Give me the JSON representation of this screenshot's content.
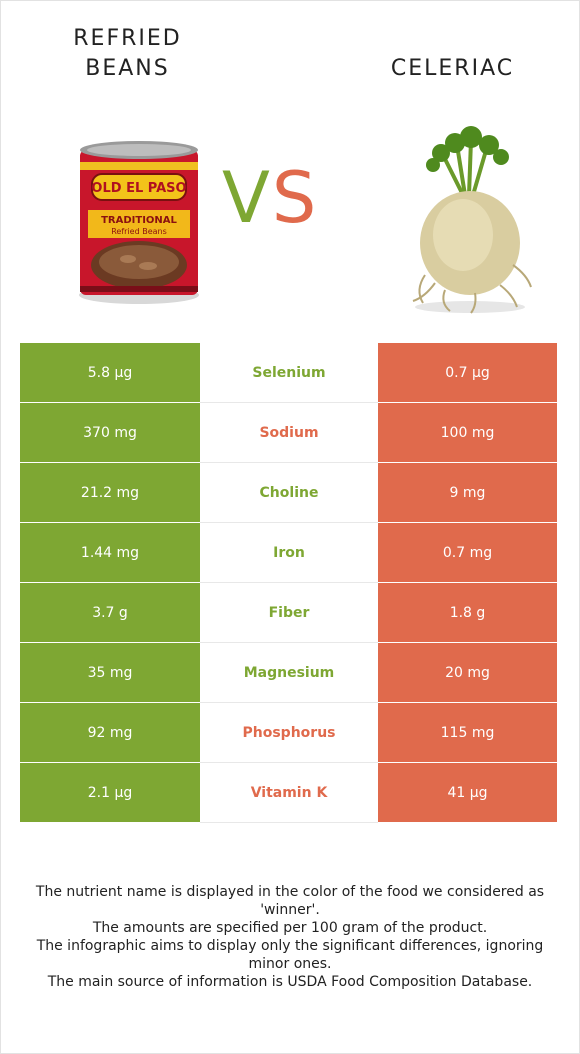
{
  "header": {
    "left_title": "REFRIED\nBEANS",
    "right_title": "CELERIAC",
    "vs_v": "V",
    "vs_s": "S"
  },
  "colors": {
    "left": "#7ea733",
    "right": "#e06a4c"
  },
  "images": {
    "left": "refried-beans-can-image",
    "right": "celeriac-root-image"
  },
  "rows": [
    {
      "left": "5.8 µg",
      "nutrient": "Selenium",
      "right": "0.7 µg",
      "winner": "left"
    },
    {
      "left": "370 mg",
      "nutrient": "Sodium",
      "right": "100 mg",
      "winner": "right"
    },
    {
      "left": "21.2 mg",
      "nutrient": "Choline",
      "right": "9 mg",
      "winner": "left"
    },
    {
      "left": "1.44 mg",
      "nutrient": "Iron",
      "right": "0.7 mg",
      "winner": "left"
    },
    {
      "left": "3.7 g",
      "nutrient": "Fiber",
      "right": "1.8 g",
      "winner": "left"
    },
    {
      "left": "35 mg",
      "nutrient": "Magnesium",
      "right": "20 mg",
      "winner": "left"
    },
    {
      "left": "92 mg",
      "nutrient": "Phosphorus",
      "right": "115 mg",
      "winner": "right"
    },
    {
      "left": "2.1 µg",
      "nutrient": "Vitamin K",
      "right": "41 µg",
      "winner": "right"
    }
  ],
  "footer": [
    "The nutrient name is displayed in the color of the food we considered as 'winner'.",
    "The amounts are specified per 100 gram of the product.",
    "The infographic aims to display only the significant differences, ignoring minor ones.",
    "The main source of information is USDA Food Composition Database."
  ]
}
